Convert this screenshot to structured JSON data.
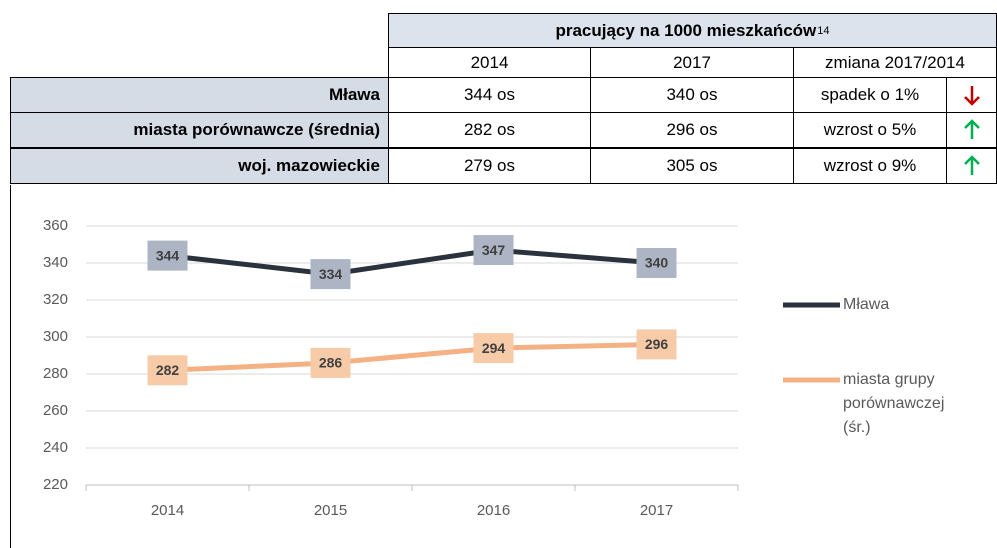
{
  "table": {
    "title": "pracujący na 1000 mieszkańców",
    "footnote": "14",
    "columns": [
      "2014",
      "2017",
      "zmiana 2017/2014"
    ],
    "rows": [
      [
        "Mława",
        "344 os",
        "340 os",
        "spadek o 1%"
      ],
      [
        "miasta porównawcze (średnia)",
        "282 os",
        "296 os",
        "wzrost o 5%"
      ],
      [
        "woj. mazowieckie",
        "279 os",
        "305 os",
        "wzrost o 9%"
      ]
    ]
  },
  "chart_data": {
    "type": "line",
    "categories": [
      "2014",
      "2015",
      "2016",
      "2017"
    ],
    "series": [
      {
        "name": "Mława",
        "color": "#2a323d",
        "label_color": "#adb5c5",
        "values": [
          344,
          334,
          347,
          340
        ]
      },
      {
        "name": "miasta grupy porównawczej (śr.)",
        "color": "#f4b183",
        "label_color": "#f8cba8",
        "values": [
          282,
          286,
          294,
          296
        ]
      }
    ],
    "ylim": [
      220,
      360
    ],
    "yticks": [
      220,
      240,
      260,
      280,
      300,
      320,
      340,
      360
    ],
    "grid": true,
    "legend": "right"
  }
}
